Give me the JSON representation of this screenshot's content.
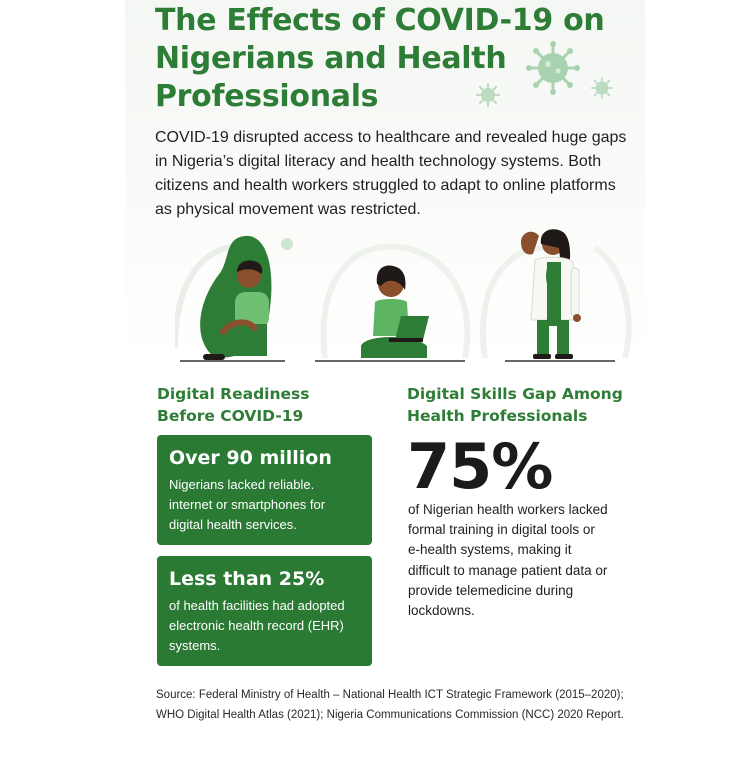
{
  "title": "The Effects of COVID-19 on Nigerians and Health Professionals",
  "intro": "COVID-19 disrupted access to healthcare and revealed huge gaps in Nigeria’s digital literacy and health technology systems. Both citizens and health workers struggled to adapt to online platforms as physical movement was restricted.",
  "left_section": {
    "heading": "Digital Readiness Before COVID-19",
    "cards": [
      {
        "headline": "Over 90 million",
        "text": "Nigerians lacked reliable. internet or smartphones for digital health services."
      },
      {
        "headline": "Less than 25%",
        "text": "of health facilities had adopted electronic health record (EHR) systems."
      }
    ]
  },
  "right_section": {
    "heading": "Digital Skills Gap Among Health Professionals",
    "stat": "75%",
    "stat_text": "of Nigerian health workers lacked formal training in digital tools or e-health systems, making it difficult to manage patient data or provide telemedicine during lockdowns."
  },
  "source": "Source: Federal Ministry of Health – National Health ICT Strategic Framework (2015–2020); WHO Digital Health Atlas (2021); Nigeria Communications Commission (NCC) 2020 Report.",
  "colors": {
    "primary_green": "#2e7d36",
    "card_green": "#2a7a34",
    "virus_green": "#a9d3b0",
    "skin": "#8a4f2c",
    "hair": "#1f1a17"
  },
  "icons": [
    "virus-icon",
    "sad-person-illustration",
    "person-with-laptop-illustration",
    "doctor-illustration"
  ]
}
